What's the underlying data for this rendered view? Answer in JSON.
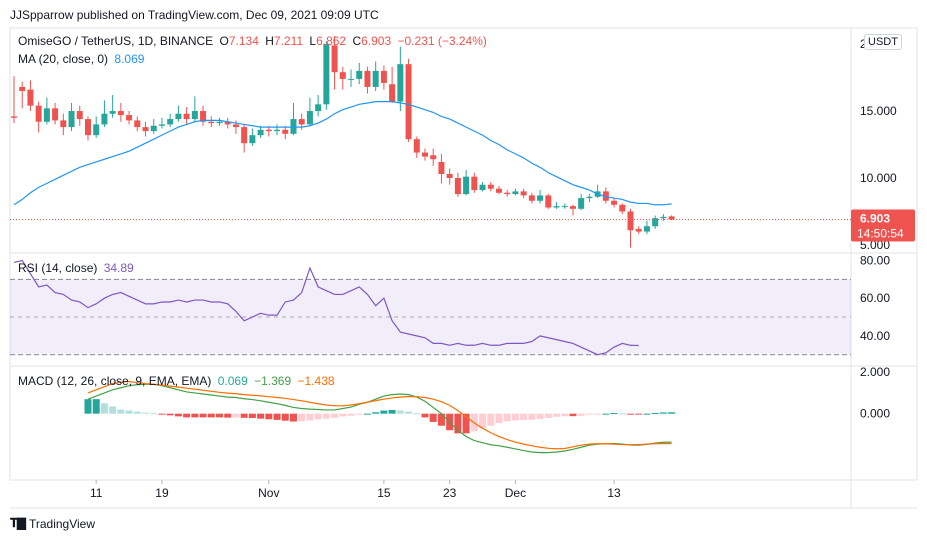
{
  "header": {
    "published": "JJSpparrow published on TradingView.com, Dec 09, 2021 09:09 UTC"
  },
  "footer": {
    "brand": "TradingView",
    "logo": "tradingview-logo-icon"
  },
  "legend": {
    "symbol": "OmiseGO / TetherUS, 1D, BINANCE",
    "o_label": "O",
    "o_value": "7.134",
    "h_label": "H",
    "h_value": "7.211",
    "l_label": "L",
    "l_value": "6.862",
    "c_label": "C",
    "c_value": "6.903",
    "change": "−0.231 (−3.24%)",
    "ma_label": "MA (20, close, 0)",
    "ma_value": "8.069",
    "rsi_label": "RSI (14, close)",
    "rsi_value": "34.89",
    "macd_label": "MACD (12, 26, close, 9, EMA, EMA)",
    "macd_hist": "0.069",
    "macd_line": "−1.369",
    "macd_signal": "−1.438"
  },
  "currency_badge": "USDT",
  "price_label": {
    "value": "6.903",
    "countdown": "14:50:54"
  },
  "colors": {
    "up": "#26a69a",
    "down": "#ef5350",
    "ma": "#2196f3",
    "rsi": "#7e57c2",
    "macd": "#43a047",
    "signal": "#ff6d00",
    "hist_up_strong": "#26a69a",
    "hist_up_weak": "#b2dfdb",
    "hist_down_strong": "#ef5350",
    "hist_down_weak": "#ffcdd2"
  },
  "chart_data": [
    {
      "type": "candlestick",
      "x_tick_labels": [
        "11",
        "19",
        "Nov",
        "15",
        "23",
        "Dec",
        "13"
      ],
      "x_tick_dates": [
        "2021-10-11",
        "2021-10-19",
        "2021-11-01",
        "2021-11-15",
        "2021-11-23",
        "2021-12-01",
        "2021-12-13"
      ],
      "y_tick_labels": [
        "20.000",
        "15.000",
        "10.000",
        "5.000"
      ],
      "ylim": [
        4.4,
        21.2
      ],
      "dates_start": "2021-10-01",
      "candles": [
        [
          14.6,
          14.5,
          17.6,
          14.1
        ],
        [
          16.8,
          16.5,
          17.2,
          15.2
        ],
        [
          16.6,
          15.4,
          17.3,
          15.0
        ],
        [
          15.4,
          14.2,
          15.7,
          13.4
        ],
        [
          14.2,
          15.2,
          16.0,
          14.0
        ],
        [
          15.2,
          14.3,
          15.6,
          14.0
        ],
        [
          14.3,
          13.8,
          14.8,
          13.2
        ],
        [
          13.8,
          15.0,
          15.6,
          13.5
        ],
        [
          15.0,
          14.4,
          15.4,
          13.9
        ],
        [
          14.4,
          13.2,
          14.6,
          12.8
        ],
        [
          13.2,
          14.0,
          14.6,
          13.0
        ],
        [
          14.0,
          14.8,
          15.8,
          13.8
        ],
        [
          14.8,
          15.0,
          16.2,
          14.5
        ],
        [
          15.0,
          14.7,
          15.6,
          14.2
        ],
        [
          14.7,
          14.3,
          15.0,
          14.0
        ],
        [
          14.3,
          13.8,
          14.6,
          13.5
        ],
        [
          13.8,
          13.5,
          14.2,
          13.1
        ],
        [
          13.5,
          13.9,
          14.4,
          13.3
        ],
        [
          13.9,
          14.0,
          14.5,
          13.7
        ],
        [
          14.0,
          14.4,
          14.8,
          13.8
        ],
        [
          14.4,
          14.8,
          15.4,
          14.2
        ],
        [
          14.8,
          14.4,
          15.3,
          14.0
        ],
        [
          14.4,
          15.0,
          16.1,
          14.2
        ],
        [
          15.0,
          14.2,
          15.4,
          13.9
        ],
        [
          14.2,
          14.1,
          14.6,
          13.8
        ],
        [
          14.1,
          14.2,
          14.5,
          13.9
        ],
        [
          14.2,
          14.0,
          14.5,
          13.7
        ],
        [
          14.0,
          13.8,
          14.3,
          13.3
        ],
        [
          13.8,
          12.6,
          14.0,
          11.9
        ],
        [
          12.6,
          13.2,
          13.7,
          12.4
        ],
        [
          13.2,
          13.6,
          13.9,
          13.0
        ],
        [
          13.6,
          13.5,
          13.9,
          13.1
        ],
        [
          13.5,
          13.6,
          14.0,
          13.2
        ],
        [
          13.6,
          13.3,
          13.9,
          12.9
        ],
        [
          13.3,
          14.4,
          15.6,
          13.2
        ],
        [
          14.4,
          14.0,
          14.8,
          13.6
        ],
        [
          14.0,
          15.0,
          16.0,
          13.9
        ],
        [
          15.0,
          15.5,
          16.2,
          14.6
        ],
        [
          15.5,
          20.0,
          20.2,
          15.1
        ],
        [
          19.9,
          17.9,
          20.6,
          16.6
        ],
        [
          17.9,
          17.4,
          18.3,
          16.6
        ],
        [
          17.4,
          17.4,
          18.1,
          16.8
        ],
        [
          17.4,
          18.0,
          18.6,
          17.0
        ],
        [
          18.0,
          16.8,
          18.3,
          16.3
        ],
        [
          16.8,
          18.0,
          18.7,
          16.5
        ],
        [
          18.0,
          17.1,
          18.4,
          16.6
        ],
        [
          17.0,
          15.7,
          18.3,
          15.6
        ],
        [
          15.7,
          18.5,
          19.8,
          15.0
        ],
        [
          18.5,
          12.9,
          18.9,
          12.7
        ],
        [
          12.9,
          11.9,
          13.1,
          11.5
        ],
        [
          11.9,
          11.6,
          12.2,
          11.3
        ],
        [
          11.7,
          11.4,
          12.2,
          10.9
        ],
        [
          11.2,
          10.3,
          11.8,
          9.6
        ],
        [
          10.3,
          10.0,
          10.7,
          9.5
        ],
        [
          10.0,
          8.8,
          10.4,
          8.6
        ],
        [
          8.8,
          10.1,
          10.6,
          8.7
        ],
        [
          10.1,
          9.1,
          10.4,
          8.9
        ],
        [
          9.1,
          9.5,
          9.7,
          9.0
        ],
        [
          9.5,
          9.2,
          9.7,
          9.0
        ],
        [
          9.2,
          8.9,
          9.4,
          8.8
        ],
        [
          8.9,
          8.8,
          9.1,
          8.6
        ],
        [
          8.8,
          9.0,
          9.2,
          8.7
        ],
        [
          9.0,
          8.7,
          9.2,
          8.5
        ],
        [
          8.7,
          8.3,
          8.9,
          8.1
        ],
        [
          8.3,
          8.7,
          9.1,
          8.1
        ],
        [
          8.7,
          7.8,
          8.8,
          7.7
        ],
        [
          7.8,
          7.9,
          8.2,
          7.7
        ],
        [
          7.9,
          7.9,
          8.1,
          7.7
        ],
        [
          7.9,
          7.7,
          8.0,
          7.2
        ],
        [
          7.7,
          8.5,
          8.8,
          7.6
        ],
        [
          8.5,
          8.6,
          8.8,
          8.2
        ],
        [
          8.6,
          9.0,
          9.5,
          8.5
        ],
        [
          9.0,
          8.3,
          9.3,
          8.1
        ],
        [
          8.3,
          8.0,
          8.5,
          7.8
        ],
        [
          8.0,
          7.5,
          8.1,
          7.3
        ],
        [
          7.5,
          6.1,
          7.7,
          4.8
        ],
        [
          6.2,
          6.0,
          6.4,
          5.8
        ],
        [
          6.0,
          6.4,
          6.8,
          5.8
        ],
        [
          6.4,
          7.0,
          7.2,
          6.2
        ],
        [
          7.0,
          7.1,
          7.3,
          6.8
        ],
        [
          7.134,
          6.903,
          7.211,
          6.862
        ]
      ],
      "ma": [
        8.0,
        8.4,
        8.9,
        9.3,
        9.6,
        9.9,
        10.2,
        10.5,
        10.8,
        11.0,
        11.2,
        11.4,
        11.6,
        11.8,
        12.0,
        12.3,
        12.6,
        12.9,
        13.2,
        13.5,
        13.8,
        14.0,
        14.2,
        14.3,
        14.3,
        14.3,
        14.2,
        14.1,
        14.0,
        13.9,
        13.8,
        13.8,
        13.8,
        13.8,
        13.8,
        13.8,
        13.9,
        14.1,
        14.4,
        14.8,
        15.1,
        15.3,
        15.5,
        15.6,
        15.7,
        15.7,
        15.7,
        15.6,
        15.5,
        15.3,
        15.1,
        14.9,
        14.6,
        14.4,
        14.1,
        13.8,
        13.5,
        13.2,
        12.8,
        12.5,
        12.1,
        11.8,
        11.5,
        11.1,
        10.8,
        10.4,
        10.1,
        9.8,
        9.5,
        9.3,
        9.1,
        8.8,
        8.6,
        8.5,
        8.4,
        8.2,
        8.1,
        8.1,
        8.0,
        8.0,
        8.069
      ]
    },
    {
      "type": "line",
      "name": "RSI (14, close)",
      "y_tick_labels": [
        "80.00",
        "60.00",
        "40.00"
      ],
      "ylim": [
        24,
        84
      ],
      "bands": [
        70,
        50,
        30
      ],
      "values": [
        79,
        80,
        73,
        66,
        67,
        63,
        62,
        59,
        58,
        55,
        57,
        60,
        62,
        63,
        61,
        59,
        57,
        57,
        58,
        58,
        59,
        58,
        59,
        59,
        58,
        58,
        57,
        53,
        48,
        50,
        52,
        51,
        51,
        58,
        59,
        63,
        76,
        66,
        64,
        62,
        62,
        64,
        66,
        62,
        56,
        60,
        48,
        42,
        41,
        40,
        39,
        36,
        36,
        35,
        36,
        35,
        35,
        36,
        35,
        35,
        36,
        36,
        36,
        37,
        40,
        39,
        38,
        37,
        36,
        34,
        32,
        30,
        31,
        34,
        36,
        35,
        34.89
      ]
    },
    {
      "type": "line",
      "name": "MACD (12, 26, close, 9, EMA, EMA)",
      "y_tick_labels": [
        "2.000",
        "0.000"
      ],
      "ylim": [
        -3.2,
        2.3
      ],
      "macd": [
        0.7,
        0.85,
        1.0,
        1.15,
        1.25,
        1.35,
        1.4,
        1.42,
        1.42,
        1.35,
        1.25,
        1.15,
        1.05,
        1.0,
        0.95,
        0.9,
        0.85,
        0.8,
        0.78,
        0.72,
        0.68,
        0.62,
        0.55,
        0.48,
        0.4,
        0.3,
        0.25,
        0.22,
        0.2,
        0.18,
        0.18,
        0.25,
        0.32,
        0.45,
        0.55,
        0.7,
        0.85,
        0.92,
        0.95,
        0.92,
        0.8,
        0.6,
        0.3,
        0.0,
        -0.4,
        -0.8,
        -1.1,
        -1.3,
        -1.4,
        -1.5,
        -1.55,
        -1.62,
        -1.7,
        -1.78,
        -1.85,
        -1.88,
        -1.88,
        -1.85,
        -1.8,
        -1.72,
        -1.62,
        -1.52,
        -1.47,
        -1.45,
        -1.44,
        -1.47,
        -1.51,
        -1.52,
        -1.48,
        -1.42,
        -1.38,
        -1.369
      ],
      "signal": [
        1.0,
        1.15,
        1.3,
        1.45,
        1.52,
        1.55,
        1.5,
        1.45,
        1.42,
        1.38,
        1.33,
        1.28,
        1.23,
        1.18,
        1.13,
        1.08,
        1.03,
        0.99,
        0.96,
        0.92,
        0.89,
        0.86,
        0.82,
        0.78,
        0.74,
        0.68,
        0.62,
        0.55,
        0.48,
        0.42,
        0.38,
        0.38,
        0.42,
        0.48,
        0.56,
        0.63,
        0.7,
        0.76,
        0.8,
        0.83,
        0.82,
        0.78,
        0.7,
        0.58,
        0.4,
        0.15,
        -0.15,
        -0.45,
        -0.7,
        -0.92,
        -1.1,
        -1.25,
        -1.37,
        -1.47,
        -1.55,
        -1.62,
        -1.67,
        -1.7,
        -1.68,
        -1.6,
        -1.52,
        -1.47,
        -1.45,
        -1.45,
        -1.47,
        -1.49,
        -1.5,
        -1.49,
        -1.47,
        -1.45,
        -1.44,
        -1.438
      ],
      "histogram": [
        0.7,
        0.7,
        0.5,
        0.35,
        0.2,
        0.15,
        0.1,
        0.05,
        0.02,
        -0.03,
        -0.08,
        -0.13,
        -0.18,
        -0.18,
        -0.18,
        -0.18,
        -0.18,
        -0.19,
        -0.18,
        -0.2,
        -0.21,
        -0.24,
        -0.27,
        -0.3,
        -0.34,
        -0.38,
        -0.37,
        -0.33,
        -0.28,
        -0.24,
        -0.2,
        -0.13,
        -0.1,
        -0.03,
        0.0,
        0.07,
        0.15,
        0.18,
        0.15,
        0.1,
        0.02,
        -0.18,
        -0.4,
        -0.58,
        -0.8,
        -0.95,
        -0.95,
        -0.85,
        -0.7,
        -0.58,
        -0.45,
        -0.37,
        -0.33,
        -0.31,
        -0.3,
        -0.26,
        -0.21,
        -0.15,
        -0.12,
        -0.12,
        -0.1,
        -0.05,
        -0.02,
        0.0,
        0.03,
        0.02,
        -0.01,
        -0.03,
        0.0,
        0.03,
        0.06,
        0.069
      ]
    }
  ]
}
